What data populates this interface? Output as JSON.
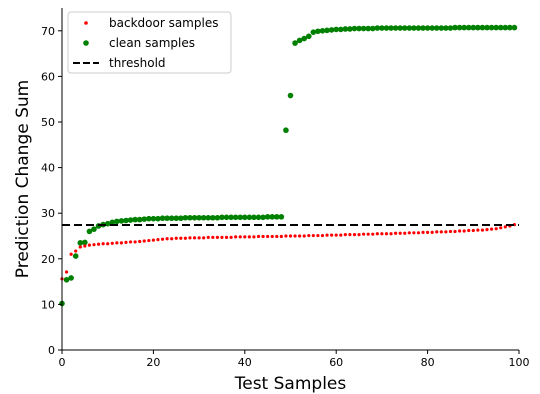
{
  "chart_data": {
    "type": "scatter",
    "xlabel": "Test Samples",
    "ylabel": "Prediction Change Sum",
    "xlim": [
      0,
      100
    ],
    "ylim": [
      0,
      75
    ],
    "xticks": [
      0,
      20,
      40,
      60,
      80,
      100
    ],
    "yticks": [
      0,
      10,
      20,
      30,
      40,
      50,
      60,
      70
    ],
    "grid": false,
    "legend_position": "top-left",
    "legend": [
      {
        "label": "backdoor samples",
        "kind": "marker",
        "color": "#ff0000",
        "size": "small"
      },
      {
        "label": "clean samples",
        "kind": "marker",
        "color": "#008000",
        "size": "large"
      },
      {
        "label": "threshold",
        "kind": "dashed-line",
        "color": "#000000"
      }
    ],
    "threshold": 27.4,
    "series": [
      {
        "name": "backdoor samples",
        "color": "#ff0000",
        "x": [
          0,
          1,
          2,
          3,
          4,
          5,
          6,
          7,
          8,
          9,
          10,
          11,
          12,
          13,
          14,
          15,
          16,
          17,
          18,
          19,
          20,
          21,
          22,
          23,
          24,
          25,
          26,
          27,
          28,
          29,
          30,
          31,
          32,
          33,
          34,
          35,
          36,
          37,
          38,
          39,
          40,
          41,
          42,
          43,
          44,
          45,
          46,
          47,
          48,
          49,
          50,
          51,
          52,
          53,
          54,
          55,
          56,
          57,
          58,
          59,
          60,
          61,
          62,
          63,
          64,
          65,
          66,
          67,
          68,
          69,
          70,
          71,
          72,
          73,
          74,
          75,
          76,
          77,
          78,
          79,
          80,
          81,
          82,
          83,
          84,
          85,
          86,
          87,
          88,
          89,
          90,
          91,
          92,
          93,
          94,
          95,
          96,
          97,
          98,
          99
        ],
        "y": [
          15.6,
          17.1,
          21.0,
          21.7,
          22.6,
          22.8,
          23.0,
          23.1,
          23.2,
          23.3,
          23.3,
          23.4,
          23.5,
          23.5,
          23.6,
          23.7,
          23.7,
          23.8,
          23.9,
          24.0,
          24.1,
          24.2,
          24.3,
          24.4,
          24.4,
          24.5,
          24.5,
          24.5,
          24.6,
          24.6,
          24.6,
          24.6,
          24.7,
          24.7,
          24.7,
          24.7,
          24.7,
          24.7,
          24.8,
          24.8,
          24.8,
          24.8,
          24.8,
          24.9,
          24.9,
          24.9,
          24.9,
          24.9,
          24.9,
          25.0,
          25.0,
          25.0,
          25.0,
          25.0,
          25.1,
          25.1,
          25.1,
          25.1,
          25.2,
          25.2,
          25.2,
          25.2,
          25.3,
          25.3,
          25.3,
          25.3,
          25.4,
          25.4,
          25.4,
          25.5,
          25.5,
          25.5,
          25.5,
          25.6,
          25.6,
          25.6,
          25.7,
          25.7,
          25.7,
          25.8,
          25.8,
          25.8,
          25.9,
          25.9,
          25.9,
          26.0,
          26.0,
          26.1,
          26.1,
          26.2,
          26.2,
          26.3,
          26.3,
          26.4,
          26.5,
          26.6,
          26.8,
          27.0,
          27.2,
          27.5
        ]
      },
      {
        "name": "clean samples",
        "color": "#008000",
        "x": [
          0,
          1,
          2,
          3,
          4,
          5,
          6,
          7,
          8,
          9,
          10,
          11,
          12,
          13,
          14,
          15,
          16,
          17,
          18,
          19,
          20,
          21,
          22,
          23,
          24,
          25,
          26,
          27,
          28,
          29,
          30,
          31,
          32,
          33,
          34,
          35,
          36,
          37,
          38,
          39,
          40,
          41,
          42,
          43,
          44,
          45,
          46,
          47,
          48,
          49,
          50,
          51,
          52,
          53,
          54,
          55,
          56,
          57,
          58,
          59,
          60,
          61,
          62,
          63,
          64,
          65,
          66,
          67,
          68,
          69,
          70,
          71,
          72,
          73,
          74,
          75,
          76,
          77,
          78,
          79,
          80,
          81,
          82,
          83,
          84,
          85,
          86,
          87,
          88,
          89,
          90,
          91,
          92,
          93,
          94,
          95,
          96,
          97,
          98,
          99
        ],
        "y": [
          10.2,
          15.4,
          15.8,
          20.6,
          23.5,
          23.6,
          26.0,
          26.5,
          27.2,
          27.5,
          27.7,
          28.0,
          28.2,
          28.3,
          28.4,
          28.5,
          28.6,
          28.6,
          28.7,
          28.8,
          28.8,
          28.8,
          28.9,
          28.9,
          28.9,
          28.9,
          28.9,
          29.0,
          29.0,
          29.0,
          29.0,
          29.0,
          29.0,
          29.0,
          29.0,
          29.1,
          29.1,
          29.1,
          29.1,
          29.1,
          29.1,
          29.1,
          29.1,
          29.1,
          29.1,
          29.2,
          29.2,
          29.2,
          29.2,
          48.2,
          55.8,
          67.3,
          67.9,
          68.3,
          68.8,
          69.7,
          69.9,
          70.0,
          70.1,
          70.2,
          70.3,
          70.3,
          70.4,
          70.4,
          70.5,
          70.5,
          70.5,
          70.5,
          70.5,
          70.6,
          70.6,
          70.6,
          70.6,
          70.6,
          70.6,
          70.6,
          70.6,
          70.6,
          70.6,
          70.6,
          70.6,
          70.6,
          70.6,
          70.6,
          70.6,
          70.6,
          70.7,
          70.7,
          70.7,
          70.7,
          70.7,
          70.7,
          70.7,
          70.7,
          70.7,
          70.7,
          70.7,
          70.7,
          70.7,
          70.7
        ]
      }
    ]
  }
}
